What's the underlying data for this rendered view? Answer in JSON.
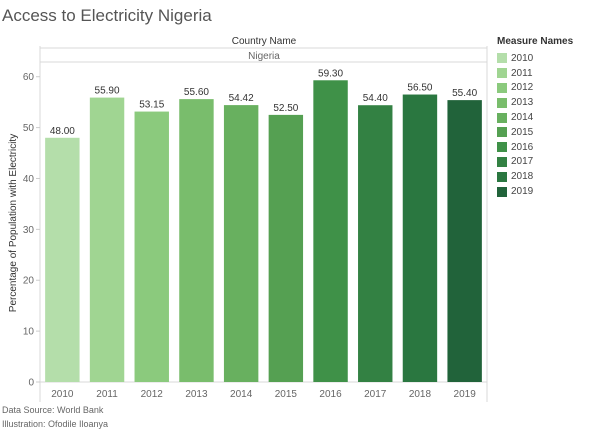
{
  "title": "Access to Electricity Nigeria",
  "header": {
    "dimension_label": "Country Name",
    "dimension_value": "Nigeria"
  },
  "legend": {
    "title": "Measure Names",
    "placement": "right"
  },
  "footer": {
    "source": "Data Source: World Bank",
    "illustration": "Illustration: Ofodile Iloanya"
  },
  "chart_data": {
    "type": "bar",
    "categories": [
      "2010",
      "2011",
      "2012",
      "2013",
      "2014",
      "2015",
      "2016",
      "2017",
      "2018",
      "2019"
    ],
    "values": [
      48.0,
      55.9,
      53.15,
      55.6,
      54.42,
      52.5,
      59.3,
      54.4,
      56.5,
      55.4
    ],
    "value_labels": [
      "48.00",
      "55.90",
      "53.15",
      "55.60",
      "54.42",
      "52.50",
      "59.30",
      "54.40",
      "56.50",
      "55.40"
    ],
    "colors": [
      "#b4deaa",
      "#a0d592",
      "#8bca7d",
      "#79bd6c",
      "#68b05f",
      "#55a052",
      "#3f9148",
      "#338143",
      "#2a7740",
      "#21633a"
    ],
    "ylabel": "Percentage of Population with Electricity",
    "xlabel": "",
    "yticks": [
      0,
      10,
      20,
      30,
      40,
      50,
      60
    ],
    "ylim": [
      0,
      62.5
    ],
    "grid": false
  }
}
